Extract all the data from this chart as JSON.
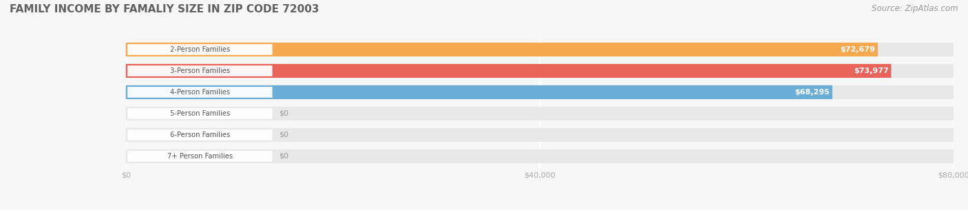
{
  "title": "FAMILY INCOME BY FAMALIY SIZE IN ZIP CODE 72003",
  "source": "Source: ZipAtlas.com",
  "categories": [
    "2-Person Families",
    "3-Person Families",
    "4-Person Families",
    "5-Person Families",
    "6-Person Families",
    "7+ Person Families"
  ],
  "values": [
    72679,
    73977,
    68295,
    0,
    0,
    0
  ],
  "bar_colors": [
    "#F5A94E",
    "#E8635A",
    "#6AAED6",
    "#C9A8D4",
    "#6ECFBF",
    "#A8B8E8"
  ],
  "value_labels": [
    "$72,679",
    "$73,977",
    "$68,295",
    "$0",
    "$0",
    "$0"
  ],
  "xlim": [
    0,
    80000
  ],
  "xticks": [
    0,
    40000,
    80000
  ],
  "xticklabels": [
    "$0",
    "$40,000",
    "$80,000"
  ],
  "bg_bar_color": "#e8e8e8",
  "background_color": "#f7f7f7",
  "title_fontsize": 11,
  "source_fontsize": 8.5,
  "label_pill_color": "#ffffff",
  "label_text_color": "#555555",
  "value_text_color_inside": "#ffffff",
  "value_text_color_outside": "#999999"
}
